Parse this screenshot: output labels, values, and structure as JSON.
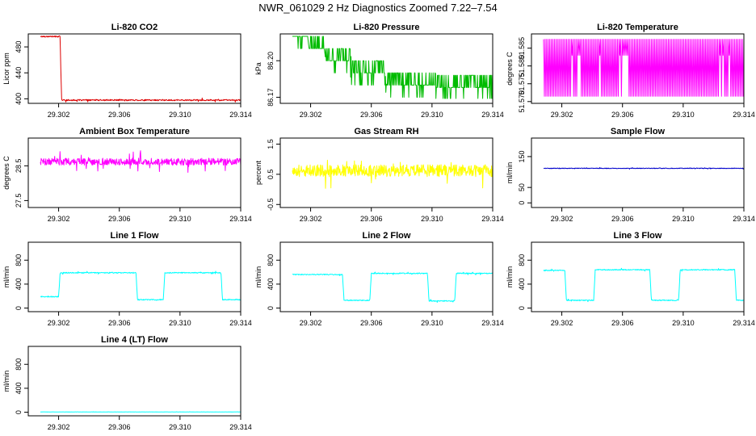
{
  "page": {
    "title": "NWR_061029  2 Hz Diagnostics Zoomed 7.22–7.54"
  },
  "chart_data": [
    {
      "type": "line",
      "title": "Li-820 CO2",
      "ylabel": "Licor ppm",
      "xlim": [
        29.3,
        29.314
      ],
      "x_ticks": [
        "29.302",
        "29.306",
        "29.310",
        "29.314"
      ],
      "ylim": [
        393,
        500
      ],
      "y_ticks": [
        "400",
        "440",
        "480"
      ],
      "color": "#dd0000",
      "series": [
        {
          "x": [
            29.3008,
            29.3021,
            29.30215,
            29.3022,
            29.3024,
            29.314
          ],
          "y": [
            496,
            496,
            440,
            398,
            398,
            398
          ]
        }
      ],
      "noise": 1
    },
    {
      "type": "line",
      "title": "Li-820 Pressure",
      "ylabel": "kPa",
      "xlim": [
        29.3,
        29.314
      ],
      "x_ticks": [
        "29.302",
        "29.306",
        "29.310",
        "29.314"
      ],
      "ylim": [
        86.165,
        86.222
      ],
      "y_ticks": [
        "86.17",
        "86.20"
      ],
      "color": "#00bb00",
      "series": [
        {
          "x": [
            29.3008,
            29.3018,
            29.3019,
            29.3029,
            29.303,
            29.3046,
            29.3047,
            29.3069,
            29.307,
            29.3102,
            29.3103,
            29.314
          ],
          "y": [
            86.22,
            86.22,
            86.21,
            86.21,
            86.2,
            86.2,
            86.19,
            86.19,
            86.18,
            86.18,
            86.178,
            86.178
          ]
        }
      ],
      "noise": 0
    },
    {
      "type": "line",
      "title": "Li-820 Temperature",
      "ylabel": "degrees C",
      "xlim": [
        29.3,
        29.314
      ],
      "x_ticks": [
        "29.302",
        "29.306",
        "29.310",
        "29.314"
      ],
      "ylim": [
        51.5695,
        51.589
      ],
      "y_ticks": [
        "51.570",
        "51.575",
        "51.580",
        "51.585"
      ],
      "color": "#ff00ff",
      "series": [
        {
          "x": [
            29.3008,
            29.314
          ],
          "y": [
            51.58,
            51.58
          ]
        }
      ],
      "noise": 0
    },
    {
      "type": "line",
      "title": "Ambient Box Temperature",
      "ylabel": "degrees C",
      "xlim": [
        29.3,
        29.314
      ],
      "x_ticks": [
        "29.302",
        "29.306",
        "29.310",
        "29.314"
      ],
      "ylim": [
        27.3,
        29.3
      ],
      "y_ticks": [
        "27.5",
        "28.5"
      ],
      "color": "#ff00ff",
      "series": [
        {
          "x": [
            29.3008,
            29.314
          ],
          "y": [
            28.62,
            28.62
          ]
        }
      ],
      "noise": 0.1
    },
    {
      "type": "line",
      "title": "Gas Stream RH",
      "ylabel": "percent",
      "xlim": [
        29.3,
        29.314
      ],
      "x_ticks": [
        "29.302",
        "29.306",
        "29.310",
        "29.314"
      ],
      "ylim": [
        -0.6,
        1.7
      ],
      "y_ticks": [
        "-0.5",
        "0.5",
        "1.5"
      ],
      "color": "#ffff00",
      "series": [
        {
          "x": [
            29.3008,
            29.314
          ],
          "y": [
            0.62,
            0.62
          ]
        }
      ],
      "noise": 0.2
    },
    {
      "type": "line",
      "title": "Sample Flow",
      "ylabel": "ml/min",
      "xlim": [
        29.3,
        29.314
      ],
      "x_ticks": [
        "29.302",
        "29.306",
        "29.310",
        "29.314"
      ],
      "ylim": [
        -15,
        210
      ],
      "y_ticks": [
        "0",
        "50",
        "150"
      ],
      "color": "#0000cc",
      "series": [
        {
          "x": [
            29.3008,
            29.314
          ],
          "y": [
            112,
            112
          ]
        }
      ],
      "noise": 1
    },
    {
      "type": "line",
      "title": "Line 1 Flow",
      "ylabel": "ml/min",
      "xlim": [
        29.3,
        29.314
      ],
      "x_ticks": [
        "29.302",
        "29.306",
        "29.310",
        "29.314"
      ],
      "ylim": [
        -60,
        1100
      ],
      "y_ticks": [
        "0",
        "400",
        "800"
      ],
      "color": "#00ffff",
      "series": [
        {
          "x": [
            29.3008,
            29.302,
            29.3021,
            29.3071,
            29.3072,
            29.3089,
            29.309,
            29.3127,
            29.3128,
            29.3145,
            29.3146,
            29.314
          ],
          "y": [
            190,
            190,
            590,
            590,
            140,
            140,
            590,
            590,
            140,
            140,
            590,
            590
          ]
        }
      ],
      "noise": 8
    },
    {
      "type": "line",
      "title": "Line 2 Flow",
      "ylabel": "ml/min",
      "xlim": [
        29.3,
        29.314
      ],
      "x_ticks": [
        "29.302",
        "29.306",
        "29.310",
        "29.314"
      ],
      "ylim": [
        -60,
        1100
      ],
      "y_ticks": [
        "0",
        "400",
        "800"
      ],
      "color": "#00ffff",
      "series": [
        {
          "x": [
            29.3008,
            29.3041,
            29.3042,
            29.3059,
            29.306,
            29.3097,
            29.3098,
            29.3115,
            29.3116,
            29.314
          ],
          "y": [
            560,
            560,
            130,
            130,
            580,
            580,
            120,
            120,
            580,
            580
          ]
        }
      ],
      "noise": 8
    },
    {
      "type": "line",
      "title": "Line 3 Flow",
      "ylabel": "ml/min",
      "xlim": [
        29.3,
        29.314
      ],
      "x_ticks": [
        "29.302",
        "29.306",
        "29.310",
        "29.314"
      ],
      "ylim": [
        -60,
        1100
      ],
      "y_ticks": [
        "0",
        "400",
        "800"
      ],
      "color": "#00ffff",
      "series": [
        {
          "x": [
            29.3008,
            29.3022,
            29.3023,
            29.3041,
            29.3042,
            29.3078,
            29.3079,
            29.3097,
            29.3098,
            29.3134,
            29.3135,
            29.314
          ],
          "y": [
            630,
            630,
            130,
            130,
            640,
            640,
            130,
            130,
            640,
            640,
            130,
            130
          ]
        }
      ],
      "noise": 8
    },
    {
      "type": "line",
      "title": "Line 4 (LT) Flow",
      "ylabel": "ml/min",
      "xlim": [
        29.3,
        29.314
      ],
      "x_ticks": [
        "29.302",
        "29.306",
        "29.310",
        "29.314"
      ],
      "ylim": [
        -60,
        1100
      ],
      "y_ticks": [
        "0",
        "400",
        "800"
      ],
      "color": "#00ffff",
      "series": [
        {
          "x": [
            29.3008,
            29.314
          ],
          "y": [
            5,
            5
          ]
        }
      ],
      "noise": 1
    }
  ]
}
